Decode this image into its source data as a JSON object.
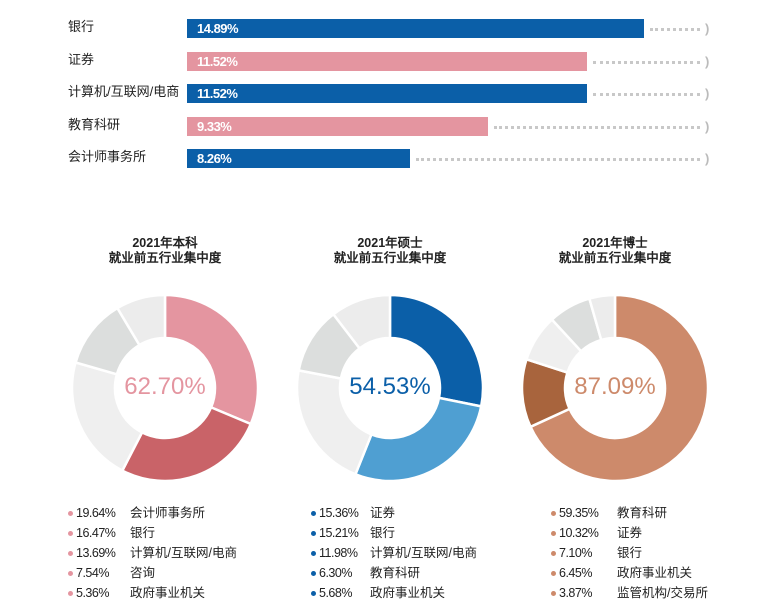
{
  "chart_data": [
    {
      "type": "bar",
      "orientation": "horizontal",
      "categories": [
        "银行",
        "证券",
        "计算机/互联网/电商",
        "教育科研",
        "会计师事务所"
      ],
      "values": [
        14.89,
        11.52,
        11.52,
        9.33,
        8.26
      ],
      "value_labels": [
        "14.89%",
        "11.52%",
        "11.52%",
        "9.33%",
        "8.26%"
      ],
      "colors": [
        "#0b5fa8",
        "#e495a0",
        "#0b5fa8",
        "#e495a0",
        "#0b5fa8"
      ],
      "unit": "%"
    },
    {
      "type": "pie",
      "title": [
        "2021年本科",
        "就业前五行业集中度"
      ],
      "center_label": "62.70%",
      "center_color": "#e495a0",
      "categories": [
        "会计师事务所",
        "银行",
        "计算机/互联网/电商",
        "咨询",
        "政府事业机关"
      ],
      "values": [
        19.64,
        16.47,
        13.69,
        7.54,
        5.36
      ],
      "labels": [
        "19.64%",
        "16.47%",
        "13.69%",
        "7.54%",
        "5.36%"
      ],
      "colors": [
        "#e495a0",
        "#c96368",
        "#efefef",
        "#dcdedd",
        "#ececec"
      ],
      "legend_dot_color": "#e495a0"
    },
    {
      "type": "pie",
      "title": [
        "2021年硕士",
        "就业前五行业集中度"
      ],
      "center_label": "54.53%",
      "center_color": "#0b5fa8",
      "categories": [
        "证券",
        "银行",
        "计算机/互联网/电商",
        "教育科研",
        "政府事业机关"
      ],
      "values": [
        15.36,
        15.21,
        11.98,
        6.3,
        5.68
      ],
      "labels": [
        "15.36%",
        "15.21%",
        "11.98%",
        "6.30%",
        "5.68%"
      ],
      "colors": [
        "#0b5fa8",
        "#4f9fd2",
        "#efefef",
        "#dcdedd",
        "#ececec"
      ],
      "legend_dot_color": "#0b5fa8"
    },
    {
      "type": "pie",
      "title": [
        "2021年博士",
        "就业前五行业集中度"
      ],
      "center_label": "87.09%",
      "center_color": "#cd8a6b",
      "categories": [
        "教育科研",
        "证券",
        "银行",
        "政府事业机关",
        "监管机构/交易所"
      ],
      "values": [
        59.35,
        10.32,
        7.1,
        6.45,
        3.87
      ],
      "labels": [
        "59.35%",
        "10.32%",
        "7.10%",
        "6.45%",
        "3.87%"
      ],
      "colors": [
        "#cd8a6b",
        "#a8643d",
        "#efefef",
        "#dcdedd",
        "#ececec"
      ],
      "legend_dot_color": "#cd8a6b"
    }
  ]
}
